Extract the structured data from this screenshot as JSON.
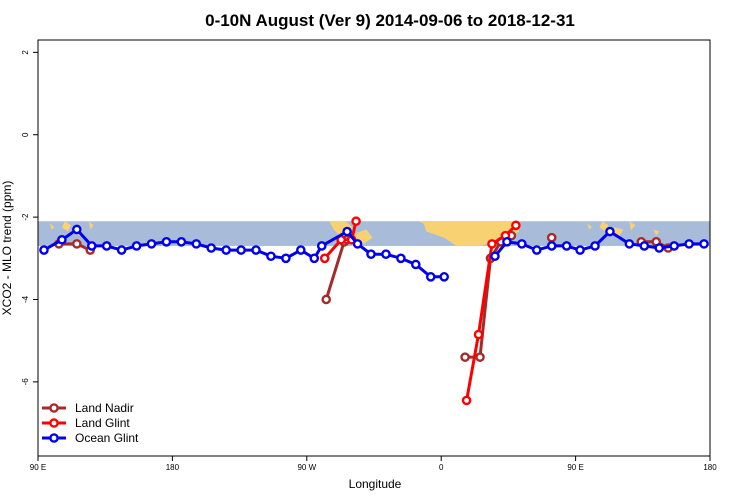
{
  "chart_data": {
    "type": "line",
    "title": "0-10N August (Ver 9)   2014-09-06 to 2018-12-31",
    "xlabel": "Longitude",
    "ylabel": "XCO2 - MLO trend (ppm)",
    "xlim": [
      90,
      540
    ],
    "ylim": [
      -7.8,
      2.3
    ],
    "x_ticks": [
      {
        "value": 90,
        "label": "90 E"
      },
      {
        "value": 180,
        "label": "180"
      },
      {
        "value": 270,
        "label": "90 W"
      },
      {
        "value": 360,
        "label": "0"
      },
      {
        "value": 450,
        "label": "90 E"
      },
      {
        "value": 540,
        "label": "180"
      }
    ],
    "y_ticks": [
      {
        "value": 2,
        "label": "2"
      },
      {
        "value": 0,
        "label": "0"
      },
      {
        "value": -2,
        "label": "-2"
      },
      {
        "value": -4,
        "label": "-4"
      },
      {
        "value": -6,
        "label": "-6"
      }
    ],
    "background_map": {
      "lat_range": "0-10N",
      "y_range": [
        -2.7,
        -2.1
      ],
      "ocean_color": "#a8bcd9",
      "land_color": "#f8d272"
    },
    "legend_position": "bottom-left",
    "series": [
      {
        "name": "Land Nadir",
        "color": "#a52a2a",
        "segments": [
          [
            [
              104,
              -2.65
            ],
            [
              116,
              -2.65
            ],
            [
              125,
              -2.8
            ]
          ],
          [
            [
              283,
              -4.0
            ],
            [
              295,
              -2.6
            ],
            [
              297,
              -2.55
            ]
          ],
          [
            [
              376,
              -5.4
            ],
            [
              386,
              -5.4
            ],
            [
              393,
              -3.0
            ],
            [
              400,
              -2.6
            ],
            [
              407,
              -2.45
            ]
          ],
          [
            [
              434,
              -2.5
            ]
          ],
          [
            [
              494,
              -2.6
            ],
            [
              504,
              -2.6
            ],
            [
              512,
              -2.75
            ]
          ]
        ]
      },
      {
        "name": "Land Glint",
        "color": "#ff0000",
        "segments": [
          [
            [
              282,
              -3.0
            ],
            [
              293,
              -2.55
            ],
            [
              300,
              -2.55
            ],
            [
              303,
              -2.1
            ]
          ],
          [
            [
              377,
              -6.45
            ],
            [
              385,
              -4.85
            ],
            [
              394,
              -2.65
            ],
            [
              403,
              -2.45
            ],
            [
              410,
              -2.2
            ]
          ]
        ]
      },
      {
        "name": "Ocean Glint",
        "color": "#0000ee",
        "segments": [
          [
            [
              94,
              -2.8
            ],
            [
              106,
              -2.55
            ],
            [
              116,
              -2.3
            ],
            [
              126,
              -2.7
            ],
            [
              136,
              -2.7
            ],
            [
              146,
              -2.8
            ],
            [
              156,
              -2.7
            ],
            [
              166,
              -2.65
            ],
            [
              176,
              -2.6
            ],
            [
              186,
              -2.6
            ],
            [
              196,
              -2.65
            ],
            [
              206,
              -2.75
            ],
            [
              216,
              -2.8
            ],
            [
              226,
              -2.8
            ],
            [
              236,
              -2.8
            ],
            [
              246,
              -2.95
            ],
            [
              256,
              -3.0
            ],
            [
              266,
              -2.8
            ],
            [
              275,
              -3.0
            ],
            [
              280,
              -2.7
            ],
            [
              297,
              -2.35
            ],
            [
              304,
              -2.65
            ],
            [
              313,
              -2.9
            ],
            [
              323,
              -2.9
            ],
            [
              333,
              -3.0
            ],
            [
              343,
              -3.15
            ],
            [
              353,
              -3.45
            ],
            [
              362,
              -3.45
            ]
          ],
          [
            [
              396,
              -2.95
            ],
            [
              404,
              -2.6
            ],
            [
              414,
              -2.65
            ],
            [
              424,
              -2.8
            ],
            [
              434,
              -2.7
            ],
            [
              444,
              -2.7
            ],
            [
              453,
              -2.8
            ],
            [
              463,
              -2.7
            ],
            [
              473,
              -2.35
            ],
            [
              486,
              -2.65
            ],
            [
              496,
              -2.7
            ],
            [
              506,
              -2.75
            ],
            [
              516,
              -2.7
            ],
            [
              526,
              -2.65
            ],
            [
              536,
              -2.65
            ]
          ]
        ]
      }
    ]
  }
}
